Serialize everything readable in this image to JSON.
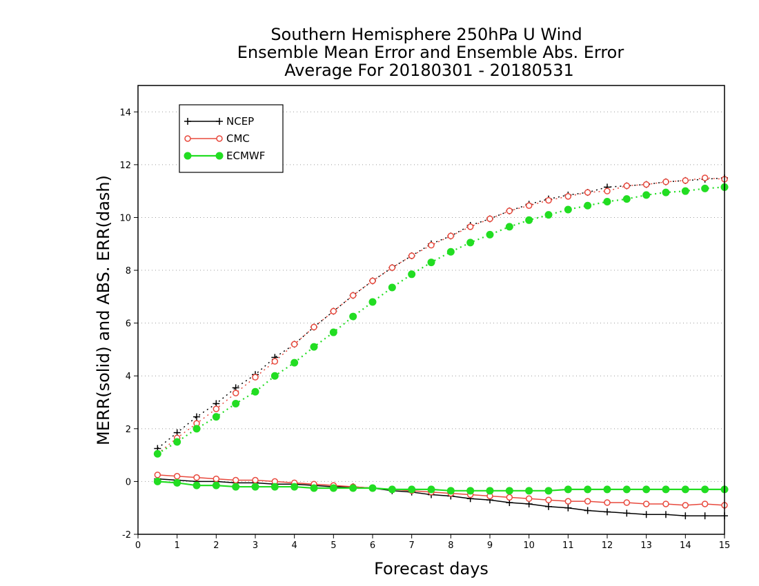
{
  "chart_data": {
    "type": "line",
    "title_lines": [
      "Southern Hemisphere 250hPa U Wind",
      "Ensemble Mean Error and Ensemble Abs. Error",
      "Average For 20180301 - 20180531"
    ],
    "xlabel": "Forecast days",
    "ylabel": "MERR(solid) and ABS. ERR(dash)",
    "xlim": [
      0,
      15
    ],
    "ylim": [
      -2,
      15
    ],
    "xticks": [
      0,
      1,
      2,
      3,
      4,
      5,
      6,
      7,
      8,
      9,
      10,
      11,
      12,
      13,
      14,
      15
    ],
    "yticks": [
      -2,
      0,
      2,
      4,
      6,
      8,
      10,
      12,
      14
    ],
    "y_gridlines": true,
    "legend_position": "top-left",
    "x": [
      0.5,
      1.0,
      1.5,
      2.0,
      2.5,
      3.0,
      3.5,
      4.0,
      4.5,
      5.0,
      5.5,
      6.0,
      6.5,
      7.0,
      7.5,
      8.0,
      8.5,
      9.0,
      9.5,
      10.0,
      10.5,
      11.0,
      11.5,
      12.0,
      12.5,
      13.0,
      13.5,
      14.0,
      14.5,
      15.0
    ],
    "series": [
      {
        "name": "NCEP",
        "color": "#000000",
        "marker": "plus",
        "mean_error": [
          0.1,
          0.05,
          0.0,
          0.0,
          -0.05,
          -0.05,
          -0.1,
          -0.1,
          -0.15,
          -0.2,
          -0.2,
          -0.25,
          -0.35,
          -0.4,
          -0.5,
          -0.55,
          -0.65,
          -0.7,
          -0.8,
          -0.85,
          -0.95,
          -1.0,
          -1.1,
          -1.15,
          -1.2,
          -1.25,
          -1.25,
          -1.3,
          -1.3,
          -1.3
        ],
        "abs_error": [
          1.25,
          1.85,
          2.45,
          2.95,
          3.55,
          4.05,
          4.7,
          5.2,
          5.85,
          6.45,
          7.05,
          7.6,
          8.1,
          8.55,
          9.0,
          9.3,
          9.7,
          9.95,
          10.25,
          10.5,
          10.7,
          10.85,
          10.95,
          11.15,
          11.2,
          11.25,
          11.35,
          11.4,
          11.45,
          11.5
        ]
      },
      {
        "name": "CMC",
        "color": "#e8483c",
        "marker": "open-circle",
        "mean_error": [
          0.25,
          0.2,
          0.15,
          0.1,
          0.05,
          0.05,
          0.0,
          -0.05,
          -0.1,
          -0.15,
          -0.2,
          -0.25,
          -0.3,
          -0.35,
          -0.4,
          -0.45,
          -0.5,
          -0.55,
          -0.6,
          -0.65,
          -0.7,
          -0.75,
          -0.75,
          -0.8,
          -0.8,
          -0.85,
          -0.85,
          -0.9,
          -0.85,
          -0.9
        ],
        "abs_error": [
          1.05,
          1.65,
          2.2,
          2.75,
          3.35,
          3.95,
          4.55,
          5.2,
          5.85,
          6.45,
          7.05,
          7.6,
          8.1,
          8.55,
          8.95,
          9.3,
          9.65,
          9.95,
          10.25,
          10.45,
          10.65,
          10.8,
          10.95,
          11.0,
          11.2,
          11.25,
          11.35,
          11.4,
          11.5,
          11.45
        ]
      },
      {
        "name": "ECMWF",
        "color": "#22dd22",
        "marker": "filled-circle",
        "mean_error": [
          0.0,
          -0.05,
          -0.15,
          -0.15,
          -0.2,
          -0.2,
          -0.2,
          -0.2,
          -0.25,
          -0.25,
          -0.25,
          -0.25,
          -0.3,
          -0.3,
          -0.3,
          -0.35,
          -0.35,
          -0.35,
          -0.35,
          -0.35,
          -0.35,
          -0.3,
          -0.3,
          -0.3,
          -0.3,
          -0.3,
          -0.3,
          -0.3,
          -0.3,
          -0.3
        ],
        "abs_error": [
          1.05,
          1.5,
          2.0,
          2.45,
          2.95,
          3.4,
          4.0,
          4.5,
          5.1,
          5.65,
          6.25,
          6.8,
          7.35,
          7.85,
          8.3,
          8.7,
          9.05,
          9.35,
          9.65,
          9.9,
          10.1,
          10.3,
          10.45,
          10.6,
          10.7,
          10.85,
          10.95,
          11.0,
          11.1,
          11.15
        ]
      }
    ]
  }
}
